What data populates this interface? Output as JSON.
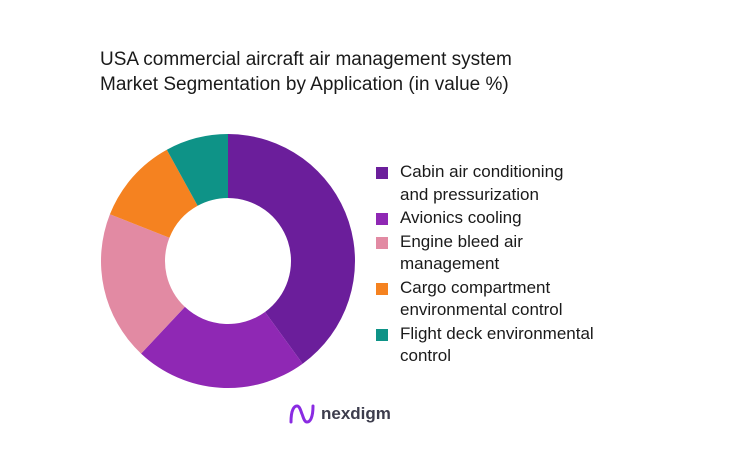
{
  "chart_data": {
    "type": "pie",
    "donut": true,
    "title_lines": [
      "USA commercial aircraft air management system",
      "Market Segmentation by Application (in value %)"
    ],
    "legend_position": "right",
    "slices": [
      {
        "label_lines": [
          "Cabin air conditioning",
          "and pressurization"
        ],
        "value": 40,
        "color": "#6b1e9b"
      },
      {
        "label_lines": [
          "Avionics cooling"
        ],
        "value": 22,
        "color": "#8f28b4"
      },
      {
        "label_lines": [
          "Engine bleed air",
          "management"
        ],
        "value": 19,
        "color": "#e28aa3"
      },
      {
        "label_lines": [
          "Cargo compartment",
          "environmental control"
        ],
        "value": 11,
        "color": "#f58220"
      },
      {
        "label_lines": [
          "Flight deck environmental",
          "control"
        ],
        "value": 8,
        "color": "#0e9387"
      }
    ]
  },
  "brand": {
    "name": "nexdigm",
    "logo_icon": "nexdigm-logo-icon",
    "logo_color": "#8a2be2"
  }
}
